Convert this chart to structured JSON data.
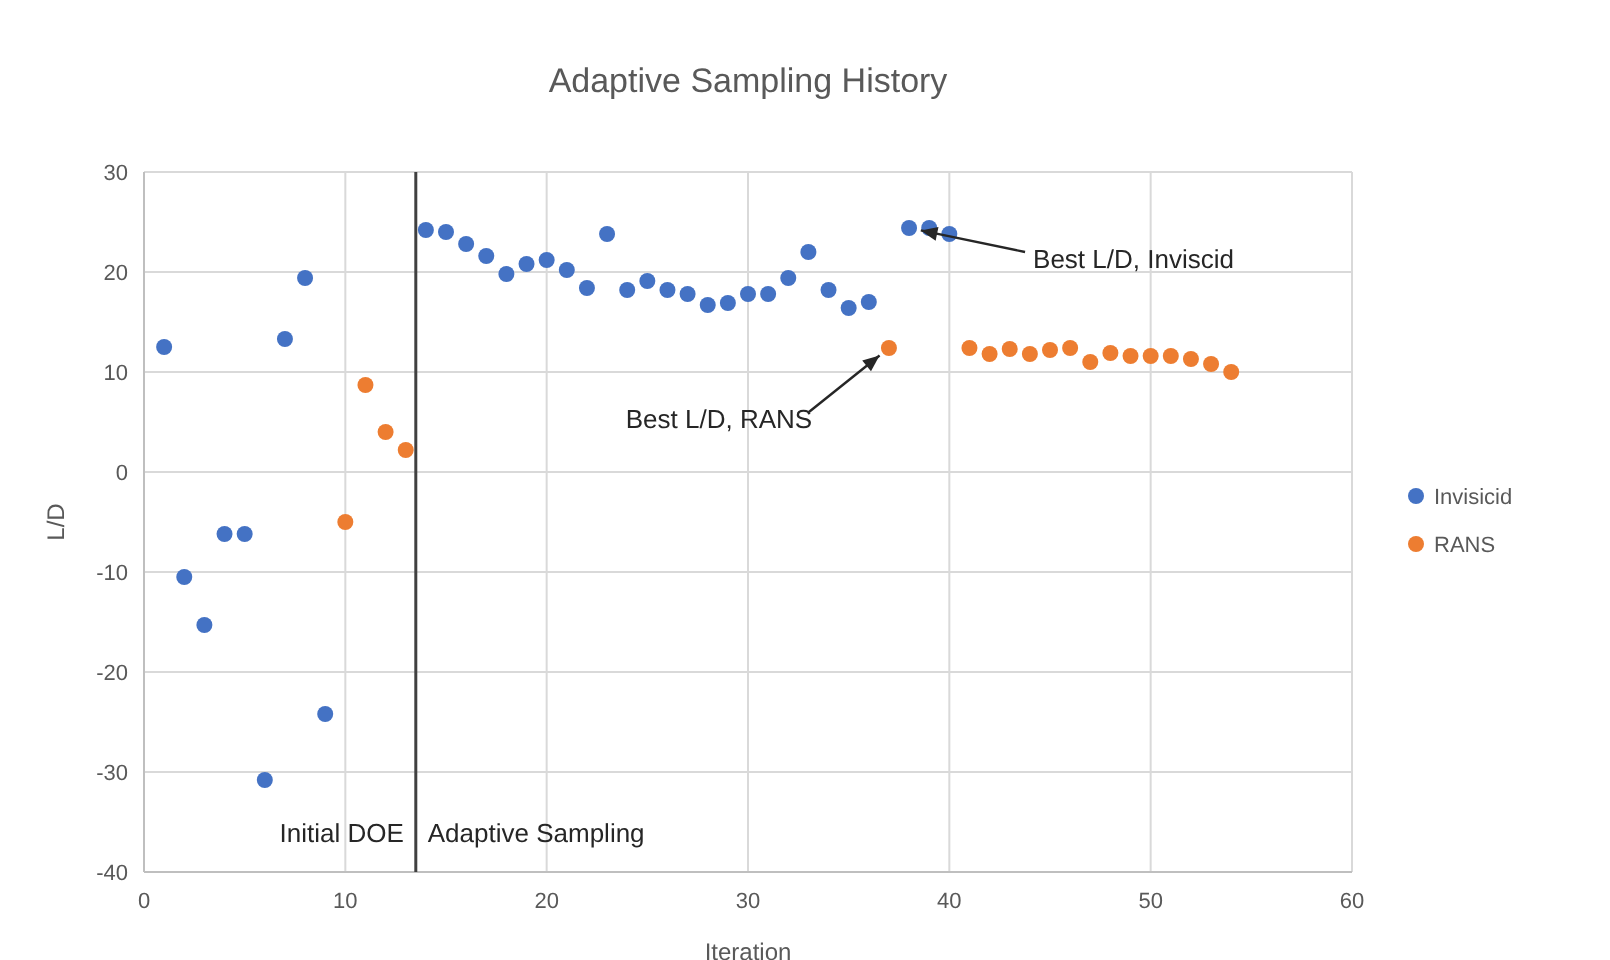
{
  "chart_data": {
    "type": "scatter",
    "title": "Adaptive Sampling History",
    "xlabel": "Iteration",
    "ylabel": "L/D",
    "xlim": [
      0,
      60
    ],
    "xticks": [
      0,
      10,
      20,
      30,
      40,
      50,
      60
    ],
    "ylim": [
      -40,
      30
    ],
    "yticks": [
      -40,
      -30,
      -20,
      -10,
      0,
      10,
      20,
      30
    ],
    "grid": true,
    "legend": "right",
    "marker": "circle",
    "series": [
      {
        "name": "Invisicid",
        "color": "#4472c4",
        "x": [
          1,
          2,
          3,
          4,
          5,
          6,
          7,
          8,
          9,
          14,
          15,
          16,
          17,
          18,
          19,
          20,
          21,
          22,
          23,
          24,
          25,
          26,
          27,
          28,
          29,
          30,
          31,
          32,
          33,
          34,
          35,
          36,
          38,
          39,
          40
        ],
        "values": [
          12.5,
          -10.5,
          -15.3,
          -6.2,
          -6.2,
          -30.8,
          13.3,
          19.4,
          -24.2,
          24.2,
          24,
          22.8,
          21.6,
          19.8,
          20.8,
          21.2,
          20.2,
          18.4,
          23.8,
          18.2,
          19.1,
          18.2,
          17.8,
          16.7,
          16.9,
          17.8,
          17.8,
          19.4,
          22,
          18.2,
          16.4,
          17,
          24.4,
          24.4,
          23.8
        ]
      },
      {
        "name": "RANS",
        "color": "#ed7d31",
        "x": [
          10,
          11,
          12,
          13,
          37,
          41,
          42,
          43,
          44,
          45,
          46,
          47,
          48,
          49,
          50,
          51,
          52,
          53,
          54
        ],
        "values": [
          -5,
          8.7,
          4,
          2.2,
          12.4,
          12.4,
          11.8,
          12.3,
          11.8,
          12.2,
          12.4,
          11,
          11.9,
          11.6,
          11.6,
          11.6,
          11.3,
          10.8,
          10
        ]
      }
    ],
    "ref_lines": [
      {
        "axis": "x",
        "value": 13.5,
        "color": "#404040"
      }
    ],
    "annotations": [
      {
        "text": "Best L/D, RANS",
        "x": 37,
        "y": 12.4
      },
      {
        "text": "Best L/D, Inviscid",
        "x": 38,
        "y": 24.4
      },
      {
        "text": "Initial DOE",
        "x": 13.5,
        "y": -37
      },
      {
        "text": "Adaptive Sampling",
        "x": 13.5,
        "y": -37
      }
    ]
  }
}
